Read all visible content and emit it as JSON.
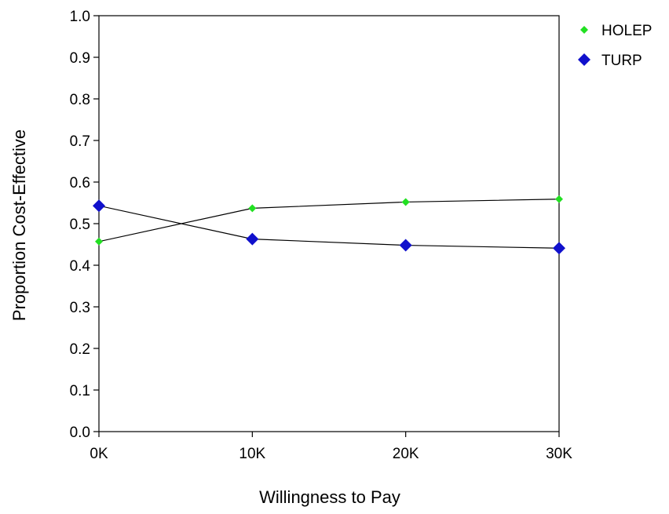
{
  "chart_data": {
    "type": "line",
    "title": "",
    "xlabel": "Willingness to Pay",
    "ylabel": "Proportion Cost-Effective",
    "x": [
      0,
      10000,
      20000,
      30000
    ],
    "x_tick_labels": [
      "0K",
      "10K",
      "20K",
      "30K"
    ],
    "xlim": [
      0,
      30000
    ],
    "ylim": [
      0,
      1
    ],
    "y_ticks": [
      0.0,
      0.1,
      0.2,
      0.3,
      0.4,
      0.5,
      0.6,
      0.7,
      0.8,
      0.9,
      1.0
    ],
    "y_tick_labels": [
      "0.0",
      "0.1",
      "0.2",
      "0.3",
      "0.4",
      "0.5",
      "0.6",
      "0.7",
      "0.8",
      "0.9",
      "1.0"
    ],
    "grid": false,
    "legend_position": "top-right, outside plot",
    "series": [
      {
        "name": "HOLEP",
        "values": [
          0.457,
          0.537,
          0.552,
          0.559
        ],
        "color": "#22e022",
        "marker": "small-diamond"
      },
      {
        "name": "TURP",
        "values": [
          0.543,
          0.463,
          0.448,
          0.441
        ],
        "color": "#1010cc",
        "marker": "large-diamond"
      }
    ]
  }
}
